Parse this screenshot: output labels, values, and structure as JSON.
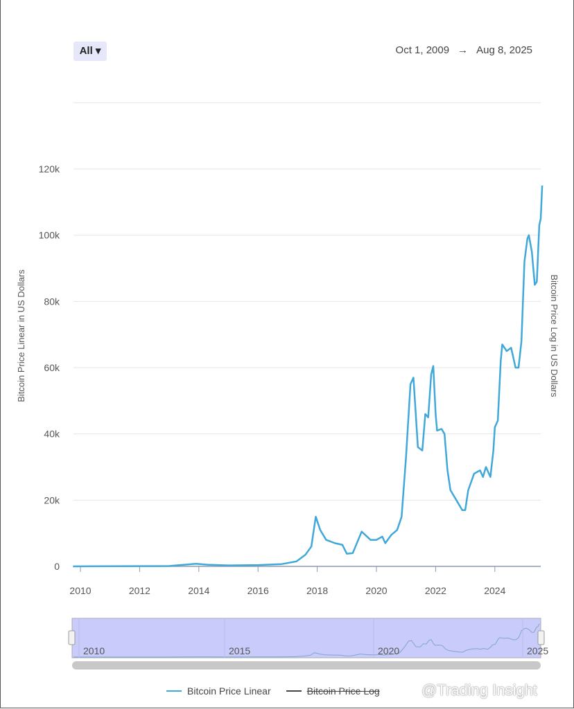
{
  "toolbar": {
    "range_selector": "All ▾",
    "date_from": "Oct 1, 2009",
    "arrow": "→",
    "date_to": "Aug 8, 2025"
  },
  "colors": {
    "linear": "#3fa8d8",
    "log": "#444444",
    "navigator_fill": "#c9ccfa",
    "grid": "#e6e6e6"
  },
  "chart_data": {
    "type": "line",
    "ylabel": "Bitcoin Price Linear in US Dollars",
    "ylabel_right": "Bitcoin Price Log in US Dollars",
    "xlim": [
      2009.75,
      2025.6
    ],
    "ylim": [
      0,
      140000
    ],
    "y_ticks": [
      {
        "v": 0,
        "label": "0"
      },
      {
        "v": 20000,
        "label": "20k"
      },
      {
        "v": 40000,
        "label": "40k"
      },
      {
        "v": 60000,
        "label": "60k"
      },
      {
        "v": 80000,
        "label": "80k"
      },
      {
        "v": 100000,
        "label": "100k"
      },
      {
        "v": 120000,
        "label": "120k"
      }
    ],
    "x_ticks": [
      "2010",
      "2012",
      "2014",
      "2016",
      "2018",
      "2020",
      "2022",
      "2024"
    ],
    "navigator_ticks": [
      "2010",
      "2015",
      "2020",
      "2025"
    ],
    "grid": true,
    "legend_position": "bottom",
    "series": [
      {
        "name": "Bitcoin Price Linear",
        "visible": true,
        "x": [
          2009.75,
          2013.0,
          2013.9,
          2014.3,
          2015.0,
          2016.0,
          2016.8,
          2017.3,
          2017.6,
          2017.8,
          2017.95,
          2018.1,
          2018.3,
          2018.6,
          2018.85,
          2019.0,
          2019.2,
          2019.5,
          2019.8,
          2020.0,
          2020.2,
          2020.3,
          2020.5,
          2020.7,
          2020.85,
          2021.0,
          2021.15,
          2021.25,
          2021.4,
          2021.55,
          2021.65,
          2021.75,
          2021.85,
          2021.92,
          2022.0,
          2022.05,
          2022.2,
          2022.3,
          2022.4,
          2022.5,
          2022.7,
          2022.9,
          2023.0,
          2023.1,
          2023.3,
          2023.5,
          2023.6,
          2023.7,
          2023.85,
          2023.95,
          2024.0,
          2024.1,
          2024.2,
          2024.25,
          2024.4,
          2024.55,
          2024.7,
          2024.8,
          2024.9,
          2025.0,
          2025.1,
          2025.15,
          2025.25,
          2025.35,
          2025.42,
          2025.5,
          2025.55,
          2025.6
        ],
        "y": [
          0,
          100,
          800,
          500,
          300,
          400,
          700,
          1500,
          3500,
          6000,
          15000,
          11000,
          8000,
          7000,
          6500,
          3800,
          4000,
          10500,
          8000,
          8000,
          9000,
          7000,
          9500,
          11000,
          15000,
          33000,
          55000,
          57000,
          36000,
          35000,
          46000,
          45000,
          58000,
          60500,
          46000,
          41000,
          41500,
          40000,
          29000,
          23000,
          20000,
          17000,
          17000,
          23000,
          28000,
          29000,
          27000,
          30000,
          27000,
          35000,
          42000,
          44000,
          62000,
          67000,
          65000,
          66000,
          60000,
          60000,
          68000,
          92000,
          99000,
          100000,
          95000,
          85000,
          86000,
          103000,
          105000,
          115000
        ]
      },
      {
        "name": "Bitcoin Price Log",
        "visible": false
      }
    ]
  },
  "watermark": "@Trading Insight"
}
